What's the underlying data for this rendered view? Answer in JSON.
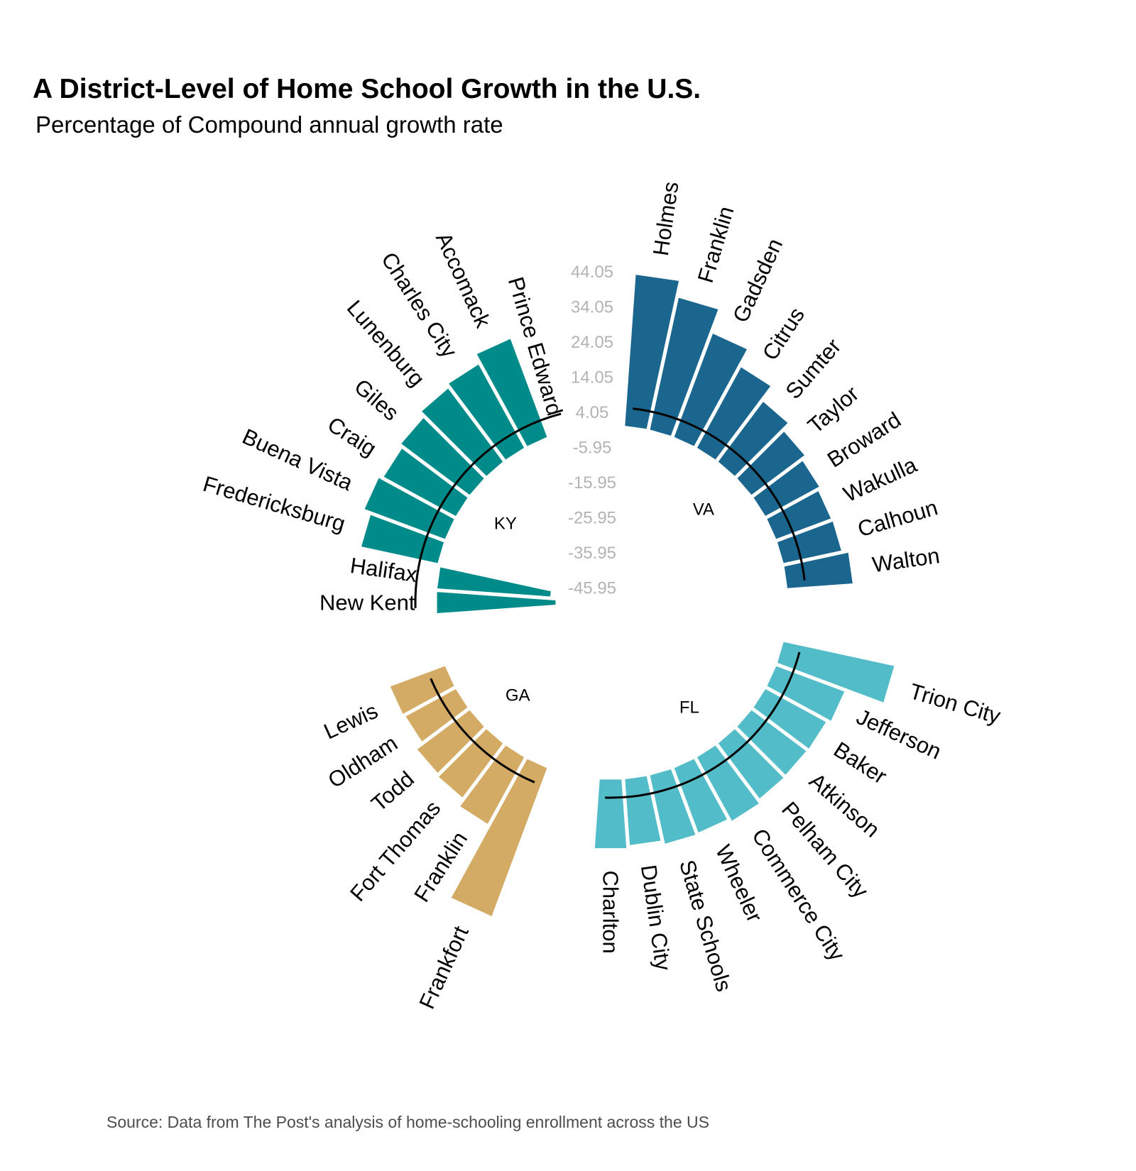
{
  "chart_data": {
    "type": "bar",
    "title": "A District-Level of Home School Growth in the U.S.",
    "subtitle": "Percentage of Compound annual growth rate",
    "caption": "Source:  Data from The Post's analysis of home-schooling enrollment across the US",
    "ylim": [
      -50,
      52
    ],
    "y_ticks": [
      "-45.95",
      "-35.95",
      "-25.95",
      "-15.95",
      "-5.95",
      "4.05",
      "14.05",
      "24.05",
      "34.05",
      "44.05"
    ],
    "grid": false,
    "legend": "none",
    "groups": [
      {
        "name": "VA",
        "color": "#1b668f",
        "categories": [
          "Holmes",
          "Franklin",
          "Gadsden",
          "Citrus",
          "Sumter",
          "Taylor",
          "Broward",
          "Wakulla",
          "Calhoun",
          "Walton"
        ],
        "values": [
          44.1,
          39.4,
          32.4,
          27.1,
          22.3,
          19.8,
          18.4,
          17.6,
          17.8,
          19.6
        ]
      },
      {
        "name": "FL",
        "color": "#52bdc8",
        "categories": [
          "Trion City",
          "Jefferson",
          "Baker",
          "Atkinson",
          "Pelham City",
          "Commerce City",
          "Wheeler",
          "State Schools",
          "Dublin City",
          "Charlton"
        ],
        "values": [
          33.2,
          21.7,
          20.6,
          20.4,
          20.6,
          21.6,
          20.6,
          20.9,
          19.8,
          20.6
        ]
      },
      {
        "name": "GA",
        "color": "#d4ab64",
        "categories": [
          "Frankfort",
          "Franklin",
          "Fort Thomas",
          "Todd",
          "Oldham",
          "Lewis"
        ],
        "values": [
          46.0,
          22.6,
          20.2,
          19.6,
          17.2,
          17.6
        ]
      },
      {
        "name": "KY",
        "color": "#008b8b",
        "categories": [
          "New Kent",
          "Halifax",
          "Fredericksburg",
          "Buena Vista",
          "Craig",
          "Giles",
          "Lunenburg",
          "Charles City",
          "Accomack",
          "Prince Edward"
        ],
        "values": [
          -34.8,
          -33.2,
          23.2,
          25.4,
          24.3,
          25.3,
          27.0,
          28.0,
          30.8,
          -0.9
        ]
      }
    ]
  },
  "colors": {
    "VA": "#1b668f",
    "FL": "#52bdc8",
    "GA": "#d4ab64",
    "KY": "#008b8b",
    "tick_text": "#b3b3b3"
  }
}
